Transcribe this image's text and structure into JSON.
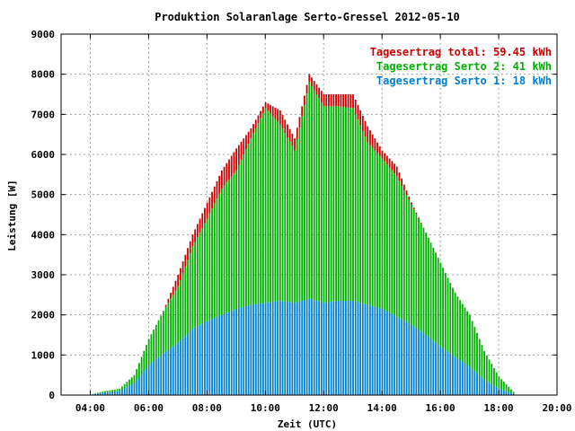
{
  "chart_data": {
    "type": "bar",
    "title": "Produktion Solaranlage Serto-Gressel 2012-05-10",
    "xlabel": "Zeit (UTC)",
    "ylabel": "Leistung [W]",
    "ylim": [
      0,
      9000
    ],
    "xlim": [
      "03:00",
      "20:00"
    ],
    "grid": true,
    "legend_position": "top-right",
    "x_ticks": [
      "04:00",
      "06:00",
      "08:00",
      "10:00",
      "12:00",
      "14:00",
      "16:00",
      "18:00",
      "20:00"
    ],
    "y_ticks": [
      "0",
      "1000",
      "2000",
      "3000",
      "4000",
      "5000",
      "6000",
      "7000",
      "8000",
      "9000"
    ],
    "legend": [
      {
        "label": "Tagesertrag total: 59.45 kWh",
        "color": "#cc0000"
      },
      {
        "label": "Tagesertrag Serto 2: 41 kWh",
        "color": "#00b000"
      },
      {
        "label": "Tagesertrag Serto 1: 18 kWh",
        "color": "#0080d0"
      }
    ],
    "series": [
      {
        "name": "Tagesertrag total: 59.45 kWh",
        "color": "#cc0000"
      },
      {
        "name": "Tagesertrag Serto 2: 41 kWh",
        "color": "#00b000"
      },
      {
        "name": "Tagesertrag Serto 1: 18 kWh",
        "color": "#0080d0"
      }
    ],
    "samples": [
      {
        "t": "04:00",
        "serto1": 10,
        "serto2": 5,
        "total": 15
      },
      {
        "t": "04:30",
        "serto1": 60,
        "serto2": 40,
        "total": 100
      },
      {
        "t": "05:00",
        "serto1": 100,
        "serto2": 60,
        "total": 160
      },
      {
        "t": "05:30",
        "serto1": 300,
        "serto2": 200,
        "total": 500
      },
      {
        "t": "06:00",
        "serto1": 750,
        "serto2": 650,
        "total": 1400
      },
      {
        "t": "06:30",
        "serto1": 1050,
        "serto2": 1050,
        "total": 2100
      },
      {
        "t": "07:00",
        "serto1": 1300,
        "serto2": 1400,
        "total": 3000
      },
      {
        "t": "07:30",
        "serto1": 1650,
        "serto2": 2050,
        "total": 4000
      },
      {
        "t": "08:00",
        "serto1": 1850,
        "serto2": 2550,
        "total": 4800
      },
      {
        "t": "08:30",
        "serto1": 2000,
        "serto2": 3150,
        "total": 5600
      },
      {
        "t": "09:00",
        "serto1": 2150,
        "serto2": 3450,
        "total": 6150
      },
      {
        "t": "09:30",
        "serto1": 2250,
        "serto2": 4150,
        "total": 6650
      },
      {
        "t": "10:00",
        "serto1": 2300,
        "serto2": 4850,
        "total": 7300
      },
      {
        "t": "10:30",
        "serto1": 2350,
        "serto2": 4400,
        "total": 7100
      },
      {
        "t": "11:00",
        "serto1": 2300,
        "serto2": 3800,
        "total": 6400
      },
      {
        "t": "11:30",
        "serto1": 2400,
        "serto2": 5400,
        "total": 8000
      },
      {
        "t": "12:00",
        "serto1": 2300,
        "serto2": 4900,
        "total": 7500
      },
      {
        "t": "12:30",
        "serto1": 2350,
        "serto2": 4850,
        "total": 7500
      },
      {
        "t": "13:00",
        "serto1": 2350,
        "serto2": 4800,
        "total": 7500
      },
      {
        "t": "13:30",
        "serto1": 2250,
        "serto2": 4050,
        "total": 6700
      },
      {
        "t": "14:00",
        "serto1": 2150,
        "serto2": 3750,
        "total": 6100
      },
      {
        "t": "14:30",
        "serto1": 1950,
        "serto2": 3500,
        "total": 5700
      },
      {
        "t": "15:00",
        "serto1": 1750,
        "serto2": 3000,
        "total": 4800
      },
      {
        "t": "15:30",
        "serto1": 1500,
        "serto2": 2550,
        "total": 4050
      },
      {
        "t": "16:00",
        "serto1": 1200,
        "serto2": 2100,
        "total": 3300
      },
      {
        "t": "16:30",
        "serto1": 950,
        "serto2": 1600,
        "total": 2550
      },
      {
        "t": "17:00",
        "serto1": 700,
        "serto2": 1300,
        "total": 2000
      },
      {
        "t": "17:30",
        "serto1": 380,
        "serto2": 720,
        "total": 1100
      },
      {
        "t": "18:00",
        "serto1": 160,
        "serto2": 300,
        "total": 460
      },
      {
        "t": "18:30",
        "serto1": 30,
        "serto2": 50,
        "total": 80
      }
    ]
  }
}
